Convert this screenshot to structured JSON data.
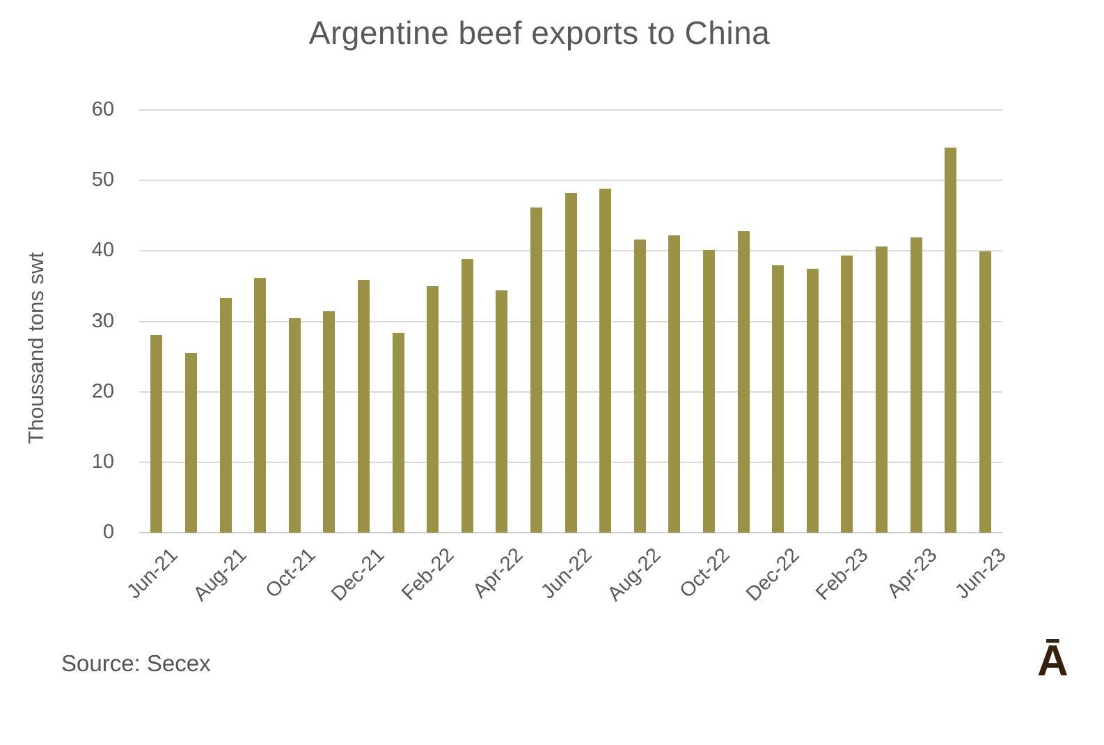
{
  "title": "Argentine beef exports to China",
  "y_axis": {
    "label": "Thoussand tons swt"
  },
  "x_axis": {
    "tick_labels": [
      "Jun-21",
      "Aug-21",
      "Oct-21",
      "Dec-21",
      "Feb-22",
      "Apr-22",
      "Jun-22",
      "Aug-22",
      "Oct-22",
      "Dec-22",
      "Feb-23",
      "Apr-23",
      "Jun-23"
    ]
  },
  "source": "Source: Secex",
  "logo_glyph": "Ā",
  "colors": {
    "bar": "#9a9347",
    "text": "#595959",
    "gridline": "#d9d9d9",
    "source_text": "#555555",
    "logo": "#35200e",
    "background": "#ffffff"
  },
  "chart_data": {
    "type": "bar",
    "title": "Argentine beef exports to China",
    "xlabel": "",
    "ylabel": "Thoussand tons swt",
    "ylim": [
      0,
      60
    ],
    "y_ticks": [
      0,
      10,
      20,
      30,
      40,
      50,
      60
    ],
    "grid": true,
    "legend": "none",
    "categories": [
      "Jun-21",
      "Jul-21",
      "Aug-21",
      "Sep-21",
      "Oct-21",
      "Nov-21",
      "Dec-21",
      "Jan-22",
      "Feb-22",
      "Mar-22",
      "Apr-22",
      "May-22",
      "Jun-22",
      "Jul-22",
      "Aug-22",
      "Sep-22",
      "Oct-22",
      "Nov-22",
      "Dec-22",
      "Jan-23",
      "Feb-23",
      "Mar-23",
      "Apr-23",
      "May-23",
      "Jun-23"
    ],
    "values": [
      28.1,
      25.5,
      33.3,
      36.2,
      30.4,
      31.4,
      35.9,
      28.4,
      35.0,
      38.8,
      34.4,
      46.2,
      48.2,
      48.8,
      41.6,
      42.2,
      40.1,
      42.8,
      38.0,
      37.5,
      39.3,
      40.6,
      41.9,
      54.7,
      39.9
    ],
    "x_tick_labels_shown": [
      "Jun-21",
      "Aug-21",
      "Oct-21",
      "Dec-21",
      "Feb-22",
      "Apr-22",
      "Jun-22",
      "Aug-22",
      "Oct-22",
      "Dec-22",
      "Feb-23",
      "Apr-23",
      "Jun-23"
    ]
  }
}
